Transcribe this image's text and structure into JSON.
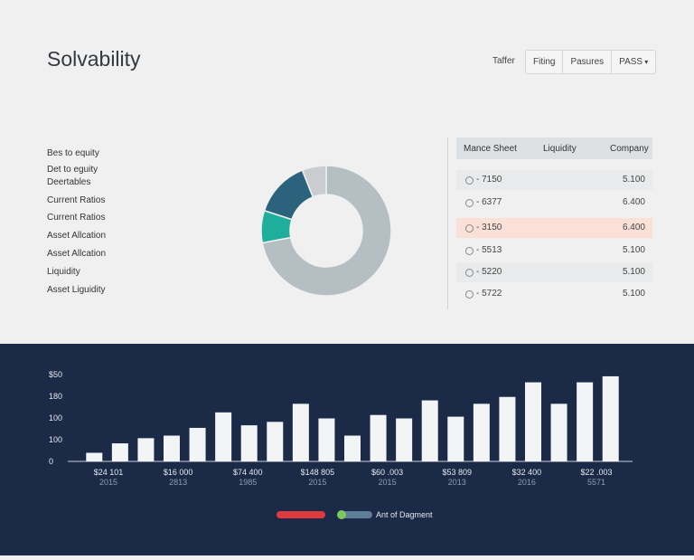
{
  "header": {
    "title": "Solvability"
  },
  "filters": {
    "label": "Taffer",
    "buttons": [
      "Fiting",
      "Pasures",
      "PASS"
    ]
  },
  "sidebar_items": [
    "Bes to equity",
    "Det to eguity",
    "Deertables",
    "Current Ratios",
    "Current Ratios",
    "Asset Allcation",
    "Asset Allcation",
    "Liquidity",
    "Asset Liguidity"
  ],
  "table": {
    "columns": [
      "Mance Sheet",
      "Liquidity",
      "Company"
    ],
    "rows": [
      [
        "- 7150",
        "5.100"
      ],
      [
        "- 6377",
        "6.400"
      ],
      [
        "- 3150",
        "6.400"
      ],
      [
        "- 5513",
        "5.100"
      ],
      [
        "- 5220",
        "5.100"
      ],
      [
        "- 5722",
        "5.100"
      ]
    ]
  },
  "chart_data": [
    {
      "type": "pie",
      "values": [
        72,
        8,
        14,
        6
      ],
      "colors": [
        "#b5bec3",
        "#1fae9c",
        "#2b637d",
        "#c9cdd0"
      ]
    },
    {
      "type": "bar",
      "y_axis_labels": [
        "$50",
        "180",
        "100",
        "100",
        "0"
      ],
      "ylim": [
        0,
        100
      ],
      "series": [
        {
          "name": "Ant of Dagment",
          "color": "#f2f4f6",
          "values": [
            10,
            21,
            27,
            30,
            39,
            57,
            42,
            46,
            67,
            50,
            30,
            54,
            50,
            71,
            52,
            67,
            75,
            92,
            67,
            92,
            99
          ]
        }
      ],
      "x_labels": [
        [
          "$24 101",
          "2015"
        ],
        [
          "$16 000",
          "2813"
        ],
        [
          "$74 400",
          "1985"
        ],
        [
          "$148 805",
          "2015"
        ],
        [
          "$60 .003",
          "2015"
        ],
        [
          "$53 809",
          "2013"
        ],
        [
          "$32 400",
          "2016"
        ],
        [
          "$22 .003",
          "5571"
        ]
      ]
    }
  ]
}
